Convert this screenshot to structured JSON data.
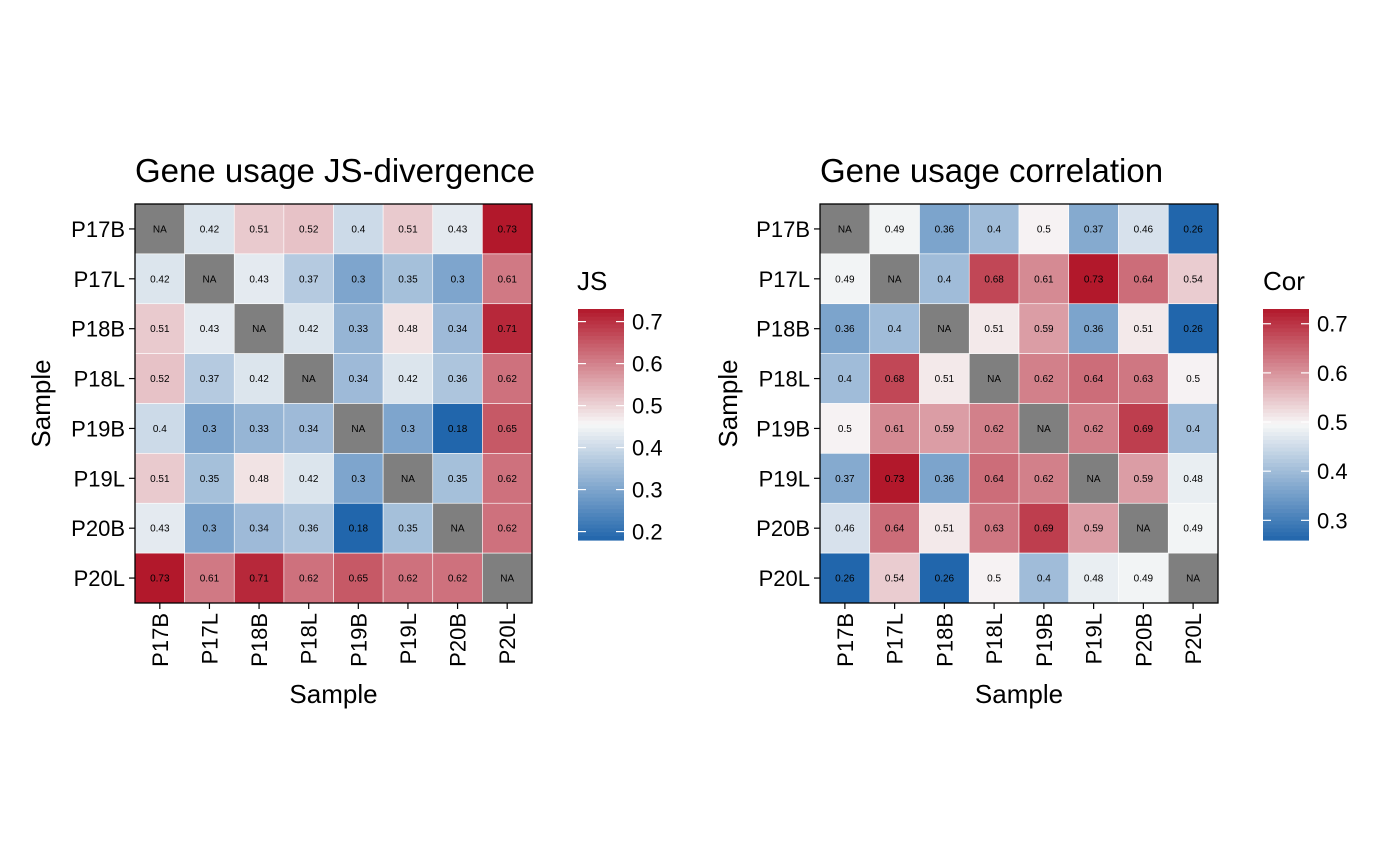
{
  "chart_data": [
    {
      "type": "heatmap",
      "title": "Gene usage JS-divergence",
      "xlabel": "Sample",
      "ylabel": "Sample",
      "legend_title": "JS",
      "legend_placement": "right",
      "samples": [
        "P17B",
        "P17L",
        "P18B",
        "P18L",
        "P19B",
        "P19L",
        "P20B",
        "P20L"
      ],
      "na_label": "NA",
      "na_color": "#7f7f7f",
      "color_scale": {
        "low": "#2166ac",
        "mid": "#f7f7f7",
        "high": "#b2182b",
        "min": 0.18,
        "mid_value": 0.455,
        "max": 0.73
      },
      "legend_ticks": [
        "0.2",
        "0.3",
        "0.4",
        "0.5",
        "0.6",
        "0.7"
      ],
      "values": [
        [
          null,
          0.42,
          0.51,
          0.52,
          0.4,
          0.51,
          0.43,
          0.73
        ],
        [
          0.42,
          null,
          0.43,
          0.37,
          0.3,
          0.35,
          0.3,
          0.61
        ],
        [
          0.51,
          0.43,
          null,
          0.42,
          0.33,
          0.48,
          0.34,
          0.71
        ],
        [
          0.52,
          0.37,
          0.42,
          null,
          0.34,
          0.42,
          0.36,
          0.62
        ],
        [
          0.4,
          0.3,
          0.33,
          0.34,
          null,
          0.3,
          0.18,
          0.65
        ],
        [
          0.51,
          0.35,
          0.48,
          0.42,
          0.3,
          null,
          0.35,
          0.62
        ],
        [
          0.43,
          0.3,
          0.34,
          0.36,
          0.18,
          0.35,
          null,
          0.62
        ],
        [
          0.73,
          0.61,
          0.71,
          0.62,
          0.65,
          0.62,
          0.62,
          null
        ]
      ]
    },
    {
      "type": "heatmap",
      "title": "Gene usage correlation",
      "xlabel": "Sample",
      "ylabel": "Sample",
      "legend_title": "Cor",
      "legend_placement": "right",
      "samples": [
        "P17B",
        "P17L",
        "P18B",
        "P18L",
        "P19B",
        "P19L",
        "P20B",
        "P20L"
      ],
      "na_label": "NA",
      "na_color": "#7f7f7f",
      "color_scale": {
        "low": "#2166ac",
        "mid": "#f7f7f7",
        "high": "#b2182b",
        "min": 0.26,
        "mid_value": 0.495,
        "max": 0.73
      },
      "legend_ticks": [
        "0.3",
        "0.4",
        "0.5",
        "0.6",
        "0.7"
      ],
      "values": [
        [
          null,
          0.49,
          0.36,
          0.4,
          0.5,
          0.37,
          0.46,
          0.26
        ],
        [
          0.49,
          null,
          0.4,
          0.68,
          0.61,
          0.73,
          0.64,
          0.54
        ],
        [
          0.36,
          0.4,
          null,
          0.51,
          0.59,
          0.36,
          0.51,
          0.26
        ],
        [
          0.4,
          0.68,
          0.51,
          null,
          0.62,
          0.64,
          0.63,
          0.5
        ],
        [
          0.5,
          0.61,
          0.59,
          0.62,
          null,
          0.62,
          0.69,
          0.4
        ],
        [
          0.37,
          0.73,
          0.36,
          0.64,
          0.62,
          null,
          0.59,
          0.48
        ],
        [
          0.46,
          0.64,
          0.51,
          0.63,
          0.69,
          0.59,
          null,
          0.49
        ],
        [
          0.26,
          0.54,
          0.26,
          0.5,
          0.4,
          0.48,
          0.49,
          null
        ]
      ]
    }
  ]
}
